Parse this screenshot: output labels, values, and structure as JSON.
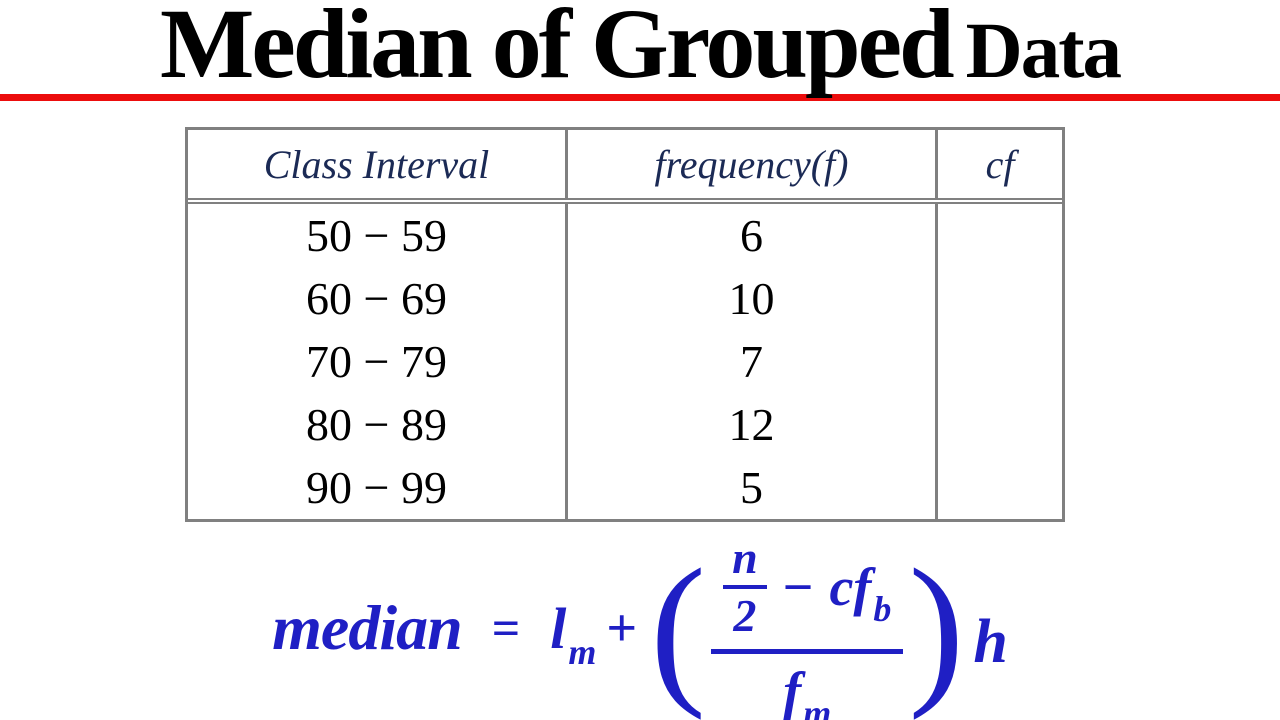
{
  "colors": {
    "background": "#ffffff",
    "body_text": "#000000",
    "red_rule": "#ec0d0d",
    "formula_blue": "#1f1fc4",
    "header_navy": "#1b2a55",
    "table_border_gray": "#808080"
  },
  "title": {
    "main": "Median of Grouped",
    "suffix": "Data"
  },
  "table": {
    "headers": {
      "class_interval": "Class Interval",
      "frequency": "frequency(f)",
      "cf": "cf"
    },
    "rows": [
      {
        "interval": "50 − 59",
        "frequency": "6",
        "cf": ""
      },
      {
        "interval": "60 − 69",
        "frequency": "10",
        "cf": ""
      },
      {
        "interval": "70 − 79",
        "frequency": "7",
        "cf": ""
      },
      {
        "interval": "80 − 89",
        "frequency": "12",
        "cf": ""
      },
      {
        "interval": "90 − 99",
        "frequency": "5",
        "cf": ""
      }
    ]
  },
  "formula": {
    "lhs": "median",
    "equals": "=",
    "lower_boundary": "l",
    "lower_boundary_sub": "m",
    "plus": "+",
    "open_paren": "(",
    "n": "n",
    "two": "2",
    "minus": "−",
    "cf": "cf",
    "cf_sub": "b",
    "f": "f",
    "f_sub": "m",
    "close_paren": ")",
    "h": "h"
  }
}
